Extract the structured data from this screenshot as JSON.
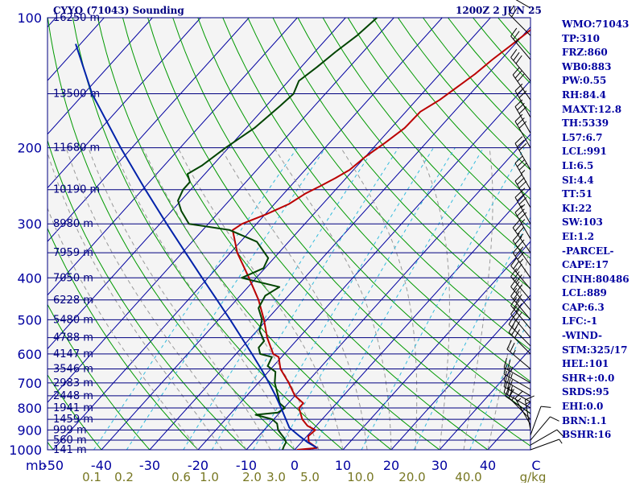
{
  "header": {
    "title": "CYYQ (71043) Sounding",
    "datetime": "1200Z  2 JUN 25"
  },
  "indices": [
    "WMO:71043",
    "TP:310",
    "FRZ:860",
    "WB0:883",
    "PW:0.55",
    "RH:84.4",
    "MAXT:12.8",
    "TH:5339",
    "L57:6.7",
    "LCL:991",
    "LI:6.5",
    "SI:4.4",
    "TT:51",
    "KI:22",
    "SW:103",
    "EI:1.2",
    "-PARCEL-",
    "CAPE:17",
    "CINH:80486",
    "LCL:889",
    "CAP:6.3",
    "LFC:-1",
    "-WIND-",
    "STM:325/17",
    "HEL:101",
    "SHR+:0.0",
    "SRDS:95",
    "EHI:0.0",
    "BRN:1.1",
    "BSHR:16"
  ],
  "colors": {
    "background": "#ffffff",
    "plot_background": "#f4f4f4",
    "isobar": "#000080",
    "isotherm": "#0000a0",
    "dry_adiabat": "#009900",
    "moist_adiabat": "#999999",
    "mixing_ratio": "#33bbdd",
    "temperature": "#bb0000",
    "dewpoint": "#004400",
    "parcel": "#0022aa",
    "axis_text": "#0000a0",
    "mixing_text": "#777722"
  },
  "chart_data": {
    "type": "line",
    "subtype": "skew-t log-p",
    "pressure_axis_label": "mb",
    "mixing_axis_label": "g/kg",
    "y_scale": "log",
    "ylim": [
      1000,
      100
    ],
    "xlim": [
      -50,
      50
    ],
    "pressure_ticks": [
      100,
      200,
      300,
      400,
      500,
      600,
      700,
      800,
      900,
      1000
    ],
    "temperature_ticks": [
      "-50",
      "-40",
      "-30",
      "-20",
      "-10",
      "0",
      "10",
      "20",
      "30",
      "40",
      "C"
    ],
    "mixing_ratio_ticks": [
      "0.1",
      "0.2",
      "0.6",
      "1.0",
      "2.0",
      "3.0",
      "5.0",
      "10.0",
      "20.0",
      "40.0"
    ],
    "height_labels": [
      {
        "p": 100,
        "label": "16250 m"
      },
      {
        "p": 150,
        "label": "13500 m"
      },
      {
        "p": 200,
        "label": "11680 m"
      },
      {
        "p": 250,
        "label": "10190 m"
      },
      {
        "p": 300,
        "label": "8980 m"
      },
      {
        "p": 350,
        "label": "7959 m"
      },
      {
        "p": 400,
        "label": "7050 m"
      },
      {
        "p": 450,
        "label": "6228 m"
      },
      {
        "p": 500,
        "label": "5480 m"
      },
      {
        "p": 550,
        "label": "4788 m"
      },
      {
        "p": 600,
        "label": "4147 m"
      },
      {
        "p": 650,
        "label": "3546 m"
      },
      {
        "p": 700,
        "label": "2983 m"
      },
      {
        "p": 750,
        "label": "2448 m"
      },
      {
        "p": 800,
        "label": "1941 m"
      },
      {
        "p": 850,
        "label": "1459 m"
      },
      {
        "p": 900,
        "label": "999 m"
      },
      {
        "p": 950,
        "label": "560 m"
      },
      {
        "p": 1000,
        "label": "141 m"
      }
    ],
    "series": [
      {
        "name": "Temperature",
        "points": [
          {
            "p": 1000,
            "t": 0.5
          },
          {
            "p": 990,
            "t": 4.3
          },
          {
            "p": 960,
            "t": 1.5
          },
          {
            "p": 930,
            "t": 0.3
          },
          {
            "p": 900,
            "t": 0.6
          },
          {
            "p": 880,
            "t": -1.8
          },
          {
            "p": 850,
            "t": -4.1
          },
          {
            "p": 800,
            "t": -6.9
          },
          {
            "p": 780,
            "t": -6.9
          },
          {
            "p": 750,
            "t": -10.0
          },
          {
            "p": 700,
            "t": -13.7
          },
          {
            "p": 650,
            "t": -18.0
          },
          {
            "p": 610,
            "t": -20.6
          },
          {
            "p": 600,
            "t": -22.3
          },
          {
            "p": 550,
            "t": -26.6
          },
          {
            "p": 500,
            "t": -30.6
          },
          {
            "p": 450,
            "t": -35.4
          },
          {
            "p": 400,
            "t": -41.5
          },
          {
            "p": 350,
            "t": -48.6
          },
          {
            "p": 310,
            "t": -53.8
          },
          {
            "p": 300,
            "t": -53.0
          },
          {
            "p": 285,
            "t": -49.8
          },
          {
            "p": 270,
            "t": -47.0
          },
          {
            "p": 255,
            "t": -45.5
          },
          {
            "p": 245,
            "t": -43.8
          },
          {
            "p": 235,
            "t": -42.2
          },
          {
            "p": 225,
            "t": -40.8
          },
          {
            "p": 210,
            "t": -40.0
          },
          {
            "p": 195,
            "t": -38.5
          },
          {
            "p": 180,
            "t": -37.2
          },
          {
            "p": 165,
            "t": -37.0
          },
          {
            "p": 155,
            "t": -35.2
          },
          {
            "p": 145,
            "t": -34.0
          },
          {
            "p": 135,
            "t": -32.7
          },
          {
            "p": 125,
            "t": -31.8
          },
          {
            "p": 115,
            "t": -30.5
          },
          {
            "p": 105,
            "t": -29.2
          },
          {
            "p": 98,
            "t": -29.0
          }
        ]
      },
      {
        "name": "Dewpoint",
        "points": [
          {
            "p": 1000,
            "t": -2.5
          },
          {
            "p": 980,
            "t": -2.9
          },
          {
            "p": 960,
            "t": -3.2
          },
          {
            "p": 940,
            "t": -4.3
          },
          {
            "p": 920,
            "t": -5.7
          },
          {
            "p": 900,
            "t": -7.1
          },
          {
            "p": 870,
            "t": -8.5
          },
          {
            "p": 850,
            "t": -10.3
          },
          {
            "p": 830,
            "t": -14.6
          },
          {
            "p": 820,
            "t": -10.4
          },
          {
            "p": 800,
            "t": -9.8
          },
          {
            "p": 780,
            "t": -11.8
          },
          {
            "p": 750,
            "t": -13.5
          },
          {
            "p": 700,
            "t": -16.6
          },
          {
            "p": 660,
            "t": -18.5
          },
          {
            "p": 640,
            "t": -21.2
          },
          {
            "p": 610,
            "t": -22.0
          },
          {
            "p": 600,
            "t": -25.0
          },
          {
            "p": 580,
            "t": -26.5
          },
          {
            "p": 560,
            "t": -26.6
          },
          {
            "p": 530,
            "t": -29.5
          },
          {
            "p": 500,
            "t": -31.0
          },
          {
            "p": 470,
            "t": -33.9
          },
          {
            "p": 440,
            "t": -34.8
          },
          {
            "p": 420,
            "t": -33.5
          },
          {
            "p": 400,
            "t": -43.0
          },
          {
            "p": 380,
            "t": -40.3
          },
          {
            "p": 360,
            "t": -41.2
          },
          {
            "p": 330,
            "t": -46.6
          },
          {
            "p": 310,
            "t": -54.4
          },
          {
            "p": 300,
            "t": -64.0
          },
          {
            "p": 280,
            "t": -68.0
          },
          {
            "p": 265,
            "t": -70.6
          },
          {
            "p": 250,
            "t": -71.6
          },
          {
            "p": 240,
            "t": -71.6
          },
          {
            "p": 230,
            "t": -73.6
          },
          {
            "p": 220,
            "t": -72.2
          },
          {
            "p": 200,
            "t": -70.6
          },
          {
            "p": 180,
            "t": -68.3
          },
          {
            "p": 160,
            "t": -67.1
          },
          {
            "p": 150,
            "t": -66.6
          },
          {
            "p": 140,
            "t": -67.9
          },
          {
            "p": 130,
            "t": -66.7
          },
          {
            "p": 120,
            "t": -65.7
          },
          {
            "p": 110,
            "t": -64.3
          },
          {
            "p": 100,
            "t": -63.5
          }
        ]
      },
      {
        "name": "Parcel",
        "points": [
          {
            "p": 990,
            "t": 4.3
          },
          {
            "p": 960,
            "t": 1.2
          },
          {
            "p": 930,
            "t": -1.5
          },
          {
            "p": 900,
            "t": -4.2
          },
          {
            "p": 889,
            "t": -5.2
          },
          {
            "p": 850,
            "t": -7.5
          },
          {
            "p": 800,
            "t": -10.6
          },
          {
            "p": 750,
            "t": -14.0
          },
          {
            "p": 700,
            "t": -17.8
          },
          {
            "p": 650,
            "t": -22.0
          },
          {
            "p": 600,
            "t": -26.7
          },
          {
            "p": 550,
            "t": -31.9
          },
          {
            "p": 500,
            "t": -37.6
          },
          {
            "p": 450,
            "t": -44.0
          },
          {
            "p": 400,
            "t": -51.2
          },
          {
            "p": 350,
            "t": -59.3
          },
          {
            "p": 300,
            "t": -68.6
          },
          {
            "p": 250,
            "t": -79.4
          },
          {
            "p": 200,
            "t": -92.3
          },
          {
            "p": 150,
            "t": -108.3
          },
          {
            "p": 115,
            "t": -121.0
          }
        ]
      }
    ],
    "wind_barbs": [
      {
        "p": 1000,
        "dir": 70,
        "spd": 5
      },
      {
        "p": 975,
        "dir": 60,
        "spd": 10
      },
      {
        "p": 950,
        "dir": 40,
        "spd": 10
      },
      {
        "p": 925,
        "dir": 20,
        "spd": 10
      },
      {
        "p": 900,
        "dir": 350,
        "spd": 15
      },
      {
        "p": 875,
        "dir": 330,
        "spd": 15
      },
      {
        "p": 850,
        "dir": 315,
        "spd": 15
      },
      {
        "p": 825,
        "dir": 305,
        "spd": 20
      },
      {
        "p": 800,
        "dir": 300,
        "spd": 20
      },
      {
        "p": 775,
        "dir": 300,
        "spd": 25
      },
      {
        "p": 750,
        "dir": 300,
        "spd": 25
      },
      {
        "p": 725,
        "dir": 300,
        "spd": 25
      },
      {
        "p": 700,
        "dir": 300,
        "spd": 25
      },
      {
        "p": 650,
        "dir": 310,
        "spd": 25
      },
      {
        "p": 600,
        "dir": 315,
        "spd": 30
      },
      {
        "p": 575,
        "dir": 315,
        "spd": 30
      },
      {
        "p": 550,
        "dir": 320,
        "spd": 30
      },
      {
        "p": 525,
        "dir": 320,
        "spd": 30
      },
      {
        "p": 500,
        "dir": 320,
        "spd": 30
      },
      {
        "p": 475,
        "dir": 320,
        "spd": 30
      },
      {
        "p": 450,
        "dir": 320,
        "spd": 30
      },
      {
        "p": 425,
        "dir": 320,
        "spd": 30
      },
      {
        "p": 400,
        "dir": 325,
        "spd": 35
      },
      {
        "p": 375,
        "dir": 325,
        "spd": 35
      },
      {
        "p": 350,
        "dir": 325,
        "spd": 35
      },
      {
        "p": 325,
        "dir": 330,
        "spd": 35
      },
      {
        "p": 300,
        "dir": 330,
        "spd": 35
      },
      {
        "p": 275,
        "dir": 330,
        "spd": 35
      },
      {
        "p": 250,
        "dir": 330,
        "spd": 35
      },
      {
        "p": 225,
        "dir": 330,
        "spd": 30
      },
      {
        "p": 200,
        "dir": 330,
        "spd": 30
      },
      {
        "p": 185,
        "dir": 330,
        "spd": 30
      },
      {
        "p": 170,
        "dir": 330,
        "spd": 30
      },
      {
        "p": 155,
        "dir": 325,
        "spd": 30
      },
      {
        "p": 140,
        "dir": 320,
        "spd": 30
      },
      {
        "p": 125,
        "dir": 320,
        "spd": 25
      },
      {
        "p": 110,
        "dir": 315,
        "spd": 20
      },
      {
        "p": 95,
        "dir": 300,
        "spd": 20
      }
    ]
  }
}
